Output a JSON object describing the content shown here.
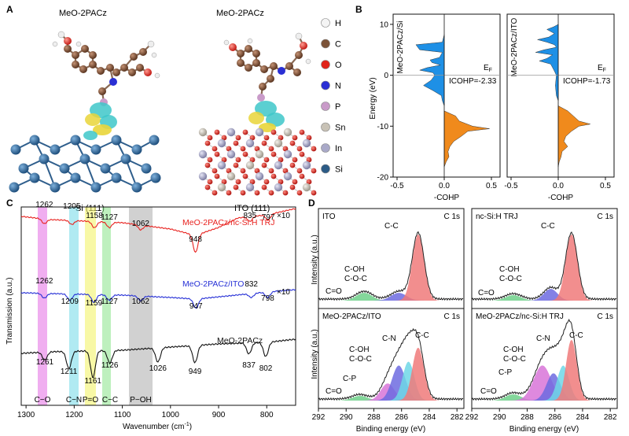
{
  "panel_letters": {
    "a": "A",
    "b": "B",
    "c": "C",
    "d": "D"
  },
  "panel_a": {
    "left_molecule": "MeO-2PACz",
    "right_molecule": "MeO-2PACz",
    "left_substrate": "Si (111)",
    "right_substrate": "ITO (111)",
    "legend": [
      {
        "symbol": "H",
        "color": "#f4f4f4"
      },
      {
        "symbol": "C",
        "color": "#7b5238"
      },
      {
        "symbol": "O",
        "color": "#e0231a"
      },
      {
        "symbol": "N",
        "color": "#2a2fd4"
      },
      {
        "symbol": "P",
        "color": "#c99bc9"
      },
      {
        "symbol": "Sn",
        "color": "#c8c2b6"
      },
      {
        "symbol": "In",
        "color": "#a9a9c8"
      },
      {
        "symbol": "Si",
        "color": "#2c5b86"
      }
    ]
  },
  "panel_b": {
    "ylabel": "Energy (eV)",
    "xlabel": "-COHP",
    "ef_label": "E",
    "ef_sub": "F",
    "y_ticks": [
      "10",
      "0",
      "-10",
      "-20"
    ],
    "x_ticks": [
      "-0.5",
      "0.0",
      "0.5"
    ],
    "subplots": [
      {
        "label": "MeO-2PACz/Si",
        "icohp": "ICOHP=-2.33"
      },
      {
        "label": "MeO-2PACz/ITO",
        "icohp": "ICOHP=-1.73"
      }
    ],
    "colors": {
      "occupied_bonding": "#f08a1c",
      "antibonding": "#1e90e6"
    }
  },
  "panel_c": {
    "ylabel": "Transmission (a.u.)",
    "xlabel": "Wavenumber (cm",
    "xlabel_sup": "-1",
    "xlabel_end": ")",
    "x_ticks": [
      "1300",
      "1200",
      "1100",
      "1000",
      "900",
      "800"
    ],
    "band_labels": [
      "C−O",
      "C−N",
      "P=O",
      "C−C",
      "P−OH"
    ],
    "series": [
      {
        "name": "MeO-2PACz/nc-Si:H TRJ",
        "color": "#e8221f",
        "scale": "×10",
        "peaks": [
          "1262",
          "1205",
          "1158",
          "1127",
          "1062",
          "948",
          "835",
          "797"
        ]
      },
      {
        "name": "MeO-2PACz/ITO",
        "color": "#2630d6",
        "scale": "×10",
        "peaks": [
          "1262",
          "1209",
          "1159",
          "1127",
          "1062",
          "947",
          "832",
          "798"
        ]
      },
      {
        "name": "MeO-2PACz",
        "color": "#111111",
        "peaks": [
          "1261",
          "1211",
          "1161",
          "1126",
          "1026",
          "949",
          "837",
          "802"
        ]
      }
    ]
  },
  "panel_d": {
    "ylabel": "Intensity (a.u.)",
    "xlabel": "Binding energy (eV)",
    "x_ticks": [
      "292",
      "290",
      "288",
      "286",
      "284",
      "282"
    ],
    "core_level": "C 1s",
    "subplots": [
      {
        "title": "ITO",
        "labels": [
          "C-C",
          "C-OH",
          "C-O-C",
          "C=O"
        ]
      },
      {
        "title": "nc-Si:H TRJ",
        "labels": [
          "C-C",
          "C-OH",
          "C-O-C",
          "C=O"
        ]
      },
      {
        "title": "MeO-2PACz/ITO",
        "labels": [
          "C-C",
          "C-N",
          "C-OH",
          "C-O-C",
          "C-P",
          "C=O"
        ]
      },
      {
        "title": "MeO-2PACz/nc-Si:H TRJ",
        "labels": [
          "C-C",
          "C-N",
          "C-OH",
          "C-O-C",
          "C-P",
          "C=O"
        ]
      }
    ],
    "component_colors": {
      "C-C": "#f07a7a",
      "C-N": "#6fd7e6",
      "C-O-C": "#6d6be0",
      "C-P": "#d874d8",
      "C=O": "#6fd08a"
    }
  }
}
